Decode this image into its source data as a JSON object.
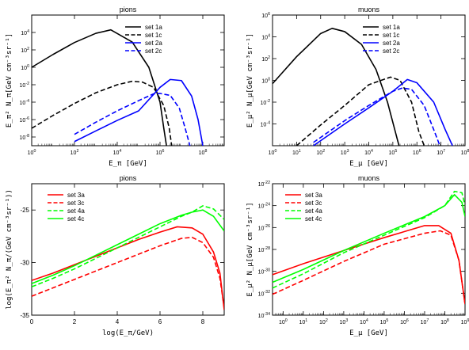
{
  "chart_data": [
    {
      "type": "line",
      "title": "pions",
      "xlabel": "E_π [GeV]",
      "ylabel": "E_π² N_π[GeV cm⁻³sr⁻¹]",
      "xscale": "log",
      "yscale": "log",
      "xlim": [
        1,
        1000000000
      ],
      "ylim": [
        1e-09,
        1000000
      ],
      "xticks": [
        "10^0",
        "10^2",
        "10^4",
        "10^6",
        "10^8"
      ],
      "yticks": [
        "10^-8",
        "10^-6",
        "10^-4",
        "10^-2",
        "10^0",
        "10^2",
        "10^4"
      ],
      "legend_position": "top-right",
      "series": [
        {
          "name": "set 1a",
          "color": "#000000",
          "dash": "solid",
          "x": [
            1,
            10,
            100,
            1000,
            5000,
            50000,
            300000,
            1000000,
            1500000,
            2000000
          ],
          "y": [
            1,
            30,
            700,
            8000,
            20000,
            800,
            1,
            0.0001,
            1e-07,
            1e-09
          ]
        },
        {
          "name": "set 1c",
          "color": "#000000",
          "dash": "dashed",
          "x": [
            1,
            10,
            100,
            1000,
            10000,
            50000,
            150000,
            500000,
            1500000,
            2700000,
            3500000
          ],
          "y": [
            1e-07,
            3e-06,
            7e-05,
            0.0012,
            0.01,
            0.025,
            0.02,
            0.005,
            4e-05,
            1e-07,
            1e-09
          ]
        },
        {
          "name": "set 2a",
          "color": "#0000ff",
          "dash": "solid",
          "x": [
            100,
            1000,
            10000,
            100000,
            1000000,
            3000000,
            10000000,
            30000000,
            60000000,
            100000000
          ],
          "y": [
            3e-09,
            5e-08,
            8e-07,
            1e-05,
            0.005,
            0.04,
            0.03,
            0.0005,
            1e-06,
            1e-09
          ]
        },
        {
          "name": "set 2c",
          "color": "#0000ff",
          "dash": "dashed",
          "x": [
            100,
            1000,
            10000,
            100000,
            500000,
            1000000,
            3000000,
            8000000,
            15000000,
            25000000
          ],
          "y": [
            2e-08,
            5e-07,
            1e-05,
            0.00015,
            0.0009,
            0.001,
            0.0006,
            2e-05,
            1e-07,
            1e-09
          ]
        }
      ]
    },
    {
      "type": "line",
      "title": "muons",
      "xlabel": "E_μ [GeV]",
      "ylabel": "E_μ² N_μ[GeV cm⁻³sr⁻¹]",
      "xscale": "log",
      "yscale": "log",
      "xlim": [
        1,
        100000000
      ],
      "ylim": [
        1e-06,
        1000000
      ],
      "xticks": [
        "10^0",
        "10^1",
        "10^2",
        "10^3",
        "10^4",
        "10^5",
        "10^6",
        "10^7",
        "10^8"
      ],
      "yticks": [
        "10^-4",
        "10^-2",
        "10^0",
        "10^2",
        "10^4",
        "10^6"
      ],
      "legend_position": "top-right",
      "series": [
        {
          "name": "set 1a",
          "color": "#000000",
          "dash": "solid",
          "x": [
            1,
            10,
            100,
            300,
            1000,
            5000,
            20000,
            60000,
            120000,
            180000
          ],
          "y": [
            0.5,
            150,
            20000,
            60000,
            30000,
            2000,
            10,
            0.01,
            3e-05,
            1e-06
          ]
        },
        {
          "name": "set 1c",
          "color": "#000000",
          "dash": "dashed",
          "x": [
            10,
            100,
            1000,
            10000,
            80000,
            200000,
            600000,
            1200000,
            2000000
          ],
          "y": [
            1e-06,
            8e-05,
            0.005,
            0.4,
            2,
            1,
            0.01,
            2e-05,
            1e-06
          ]
        },
        {
          "name": "set 2a",
          "color": "#0000ff",
          "dash": "solid",
          "x": [
            50,
            1000,
            10000,
            100000,
            400000,
            1000000,
            5000000,
            15000000,
            30000000
          ],
          "y": [
            1e-06,
            0.0001,
            0.003,
            0.1,
            1.2,
            0.6,
            0.01,
            3e-05,
            1e-06
          ]
        },
        {
          "name": "set 2c",
          "color": "#0000ff",
          "dash": "dashed",
          "x": [
            50,
            1000,
            10000,
            100000,
            250000,
            600000,
            2000000,
            5000000,
            9000000
          ],
          "y": [
            2e-06,
            0.0002,
            0.005,
            0.1,
            0.2,
            0.15,
            0.005,
            3e-05,
            1e-06
          ]
        }
      ]
    },
    {
      "type": "line",
      "title": "pions",
      "xlabel": "log(E_π/GeV)",
      "ylabel": "log(E_π² N_π/(GeV cm⁻³sr⁻¹))",
      "xlim": [
        0,
        9
      ],
      "ylim": [
        -35,
        -22.5
      ],
      "xticks": [
        "0",
        "2",
        "4",
        "6",
        "8"
      ],
      "yticks": [
        "-35",
        "-30",
        "-25"
      ],
      "legend_position": "top-left",
      "series": [
        {
          "name": "set 3a",
          "color": "#ff0000",
          "dash": "solid",
          "x": [
            0,
            1,
            2,
            3,
            4,
            5,
            6,
            6.8,
            7.5,
            8,
            8.5,
            8.8,
            9
          ],
          "y": [
            -31.7,
            -31,
            -30.2,
            -29.4,
            -28.6,
            -27.8,
            -27.1,
            -26.6,
            -26.7,
            -27.3,
            -29,
            -31,
            -34.5
          ]
        },
        {
          "name": "set 3c",
          "color": "#ff0000",
          "dash": "dashed",
          "x": [
            0,
            1,
            2,
            3,
            4,
            5,
            6,
            7,
            7.5,
            8,
            8.5,
            8.8,
            9
          ],
          "y": [
            -33.2,
            -32.4,
            -31.6,
            -30.8,
            -30,
            -29.2,
            -28.4,
            -27.7,
            -27.6,
            -28.1,
            -29.5,
            -31.5,
            -34.3
          ]
        },
        {
          "name": "set 4a",
          "color": "#00ff00",
          "dash": "dashed",
          "x": [
            0,
            1,
            2,
            3,
            4,
            5,
            6,
            7,
            7.5,
            8,
            8.5,
            9
          ],
          "y": [
            -32.3,
            -31.5,
            -30.6,
            -29.6,
            -28.6,
            -27.6,
            -26.6,
            -25.6,
            -25.2,
            -24.6,
            -24.9,
            -25.9
          ]
        },
        {
          "name": "set 4c",
          "color": "#00ff00",
          "dash": "solid",
          "x": [
            0,
            1,
            2,
            3,
            4,
            5,
            6,
            7,
            7.5,
            8,
            8.5,
            9
          ],
          "y": [
            -32.0,
            -31.2,
            -30.3,
            -29.3,
            -28.3,
            -27.3,
            -26.3,
            -25.5,
            -25.2,
            -25.0,
            -25.6,
            -27.0
          ]
        }
      ]
    },
    {
      "type": "line",
      "title": "muons",
      "xlabel": "E_μ [GeV]",
      "ylabel": "E_μ² N_μ[GeV cm⁻³sr⁻¹]",
      "xscale": "log",
      "yscale": "log",
      "xlim": [
        0.3,
        1000000000
      ],
      "ylim": [
        1e-34,
        1e-22
      ],
      "xticks": [
        "10^0",
        "10^1",
        "10^2",
        "10^3",
        "10^4",
        "10^5",
        "10^6",
        "10^7",
        "10^8",
        "10^9"
      ],
      "yticks": [
        "10^-34",
        "10^-32",
        "10^-30",
        "10^-28",
        "10^-26",
        "10^-24",
        "10^-22"
      ],
      "legend_position": "top-left",
      "series": [
        {
          "name": "set 3a",
          "color": "#ff0000",
          "dash": "solid",
          "x": [
            0.3,
            10,
            1000,
            100000,
            10000000,
            50000000,
            200000000,
            500000000,
            1000000000
          ],
          "y": [
            5e-31,
            5e-30,
            8e-29,
            1.2e-27,
            1.5e-26,
            1.5e-26,
            3e-27,
            1e-29,
            1e-33
          ]
        },
        {
          "name": "set 3c",
          "color": "#ff0000",
          "dash": "dashed",
          "x": [
            0.3,
            10,
            1000,
            100000,
            10000000,
            60000000,
            200000000,
            500000000,
            1000000000
          ],
          "y": [
            8e-33,
            1.5e-31,
            8e-30,
            3e-28,
            3e-27,
            5e-27,
            2e-27,
            1e-29,
            1e-33
          ]
        },
        {
          "name": "set 4a",
          "color": "#00ff00",
          "dash": "dashed",
          "x": [
            0.3,
            10,
            1000,
            100000,
            10000000,
            100000000,
            300000000,
            700000000,
            1000000000
          ],
          "y": [
            3e-32,
            6e-31,
            5e-29,
            2e-27,
            8e-26,
            1e-24,
            2e-23,
            1.5e-23,
            1e-24
          ]
        },
        {
          "name": "set 4c",
          "color": "#00ff00",
          "dash": "solid",
          "x": [
            0.3,
            10,
            1000,
            100000,
            10000000,
            100000000,
            300000000,
            700000000,
            1000000000
          ],
          "y": [
            1e-31,
            1.5e-30,
            8e-29,
            3e-27,
            1e-25,
            1e-24,
            1e-23,
            2e-24,
            1e-25
          ]
        }
      ]
    }
  ]
}
